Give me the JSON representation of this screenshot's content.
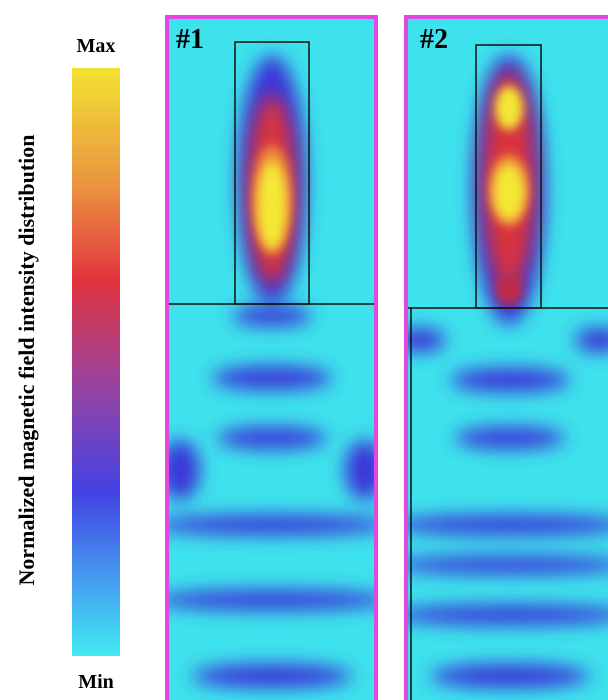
{
  "colorbar": {
    "label": "Normalized magnetic field intensity distribution",
    "max_label": "Max",
    "min_label": "Min"
  },
  "panels": [
    {
      "label": "#1"
    },
    {
      "label": "#2"
    }
  ]
}
